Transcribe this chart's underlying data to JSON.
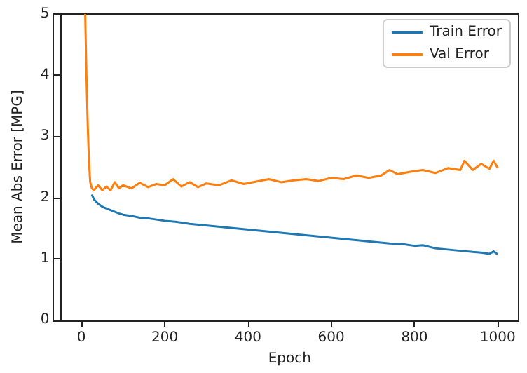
{
  "chart_data": {
    "type": "line",
    "xlabel": "Epoch",
    "ylabel": "Mean Abs Error [MPG]",
    "xlim": [
      -50,
      1050
    ],
    "ylim": [
      0,
      5
    ],
    "xticks": [
      0,
      200,
      400,
      600,
      800,
      1000
    ],
    "yticks": [
      0,
      1,
      2,
      3,
      4,
      5
    ],
    "grid": false,
    "legend": "top right",
    "series": [
      {
        "name": "Train Error",
        "color": "#1f77b4",
        "x": [
          25,
          30,
          40,
          50,
          60,
          75,
          90,
          100,
          120,
          140,
          160,
          180,
          200,
          230,
          260,
          290,
          320,
          350,
          380,
          410,
          440,
          470,
          500,
          530,
          560,
          590,
          620,
          650,
          680,
          710,
          740,
          770,
          800,
          820,
          850,
          880,
          910,
          940,
          960,
          980,
          990,
          1000
        ],
        "values": [
          2.05,
          1.97,
          1.9,
          1.85,
          1.82,
          1.78,
          1.74,
          1.72,
          1.7,
          1.67,
          1.66,
          1.64,
          1.62,
          1.6,
          1.57,
          1.55,
          1.53,
          1.51,
          1.49,
          1.47,
          1.45,
          1.43,
          1.41,
          1.39,
          1.37,
          1.35,
          1.33,
          1.31,
          1.29,
          1.27,
          1.25,
          1.24,
          1.21,
          1.22,
          1.17,
          1.15,
          1.13,
          1.11,
          1.1,
          1.08,
          1.12,
          1.07
        ]
      },
      {
        "name": "Val Error",
        "color": "#ff7f0e",
        "x": [
          9,
          12,
          15,
          18,
          21,
          25,
          30,
          40,
          50,
          60,
          70,
          80,
          90,
          100,
          120,
          140,
          160,
          180,
          200,
          220,
          240,
          260,
          280,
          300,
          330,
          360,
          390,
          420,
          450,
          480,
          510,
          540,
          570,
          600,
          630,
          660,
          690,
          720,
          740,
          760,
          790,
          820,
          850,
          880,
          910,
          920,
          940,
          960,
          980,
          990,
          1000
        ],
        "values": [
          5,
          4,
          3.2,
          2.6,
          2.25,
          2.15,
          2.12,
          2.2,
          2.12,
          2.18,
          2.12,
          2.25,
          2.15,
          2.2,
          2.15,
          2.24,
          2.17,
          2.22,
          2.2,
          2.3,
          2.18,
          2.25,
          2.17,
          2.23,
          2.2,
          2.28,
          2.22,
          2.26,
          2.3,
          2.25,
          2.28,
          2.3,
          2.27,
          2.32,
          2.3,
          2.36,
          2.32,
          2.36,
          2.45,
          2.38,
          2.42,
          2.45,
          2.4,
          2.48,
          2.45,
          2.6,
          2.45,
          2.55,
          2.47,
          2.6,
          2.48
        ]
      }
    ]
  }
}
